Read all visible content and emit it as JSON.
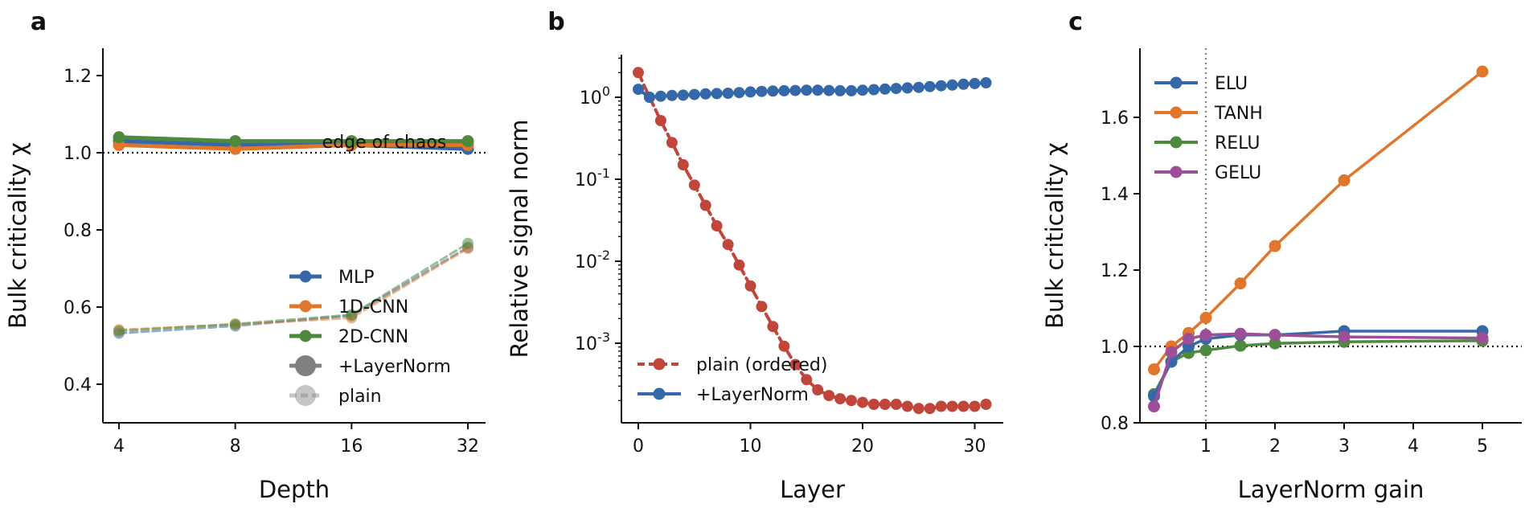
{
  "colors": {
    "MLP": "#3468a8",
    "1D-CNN": "#e0762b",
    "2D-CNN": "#4d8a3d",
    "plain_b": "#c0463c",
    "layernorm_b": "#3468a8",
    "ELU": "#3468a8",
    "TANH": "#e0762b",
    "RELU": "#4d8a3d",
    "GELU": "#9c4f96",
    "legend_gray": "#808080"
  },
  "chart_data": [
    {
      "panel": "a",
      "type": "line",
      "title": "",
      "xlabel": "Depth",
      "ylabel": "Bulk criticality χ",
      "x_scale": "log2",
      "x": [
        4,
        8,
        16,
        32
      ],
      "x_ticks": [
        "4",
        "8",
        "16",
        "32"
      ],
      "ylim": [
        0.3,
        1.25
      ],
      "y_ticks": [
        "0.4",
        "0.6",
        "0.8",
        "1.0",
        "1.2"
      ],
      "reference_line": 1.0,
      "annotation": "edge of chaos",
      "legend_position": "lower-right",
      "legend_entries": [
        "MLP",
        "1D-CNN",
        "2D-CNN",
        "+LayerNorm",
        "plain"
      ],
      "series": [
        {
          "name": "MLP",
          "variant": "+LayerNorm",
          "values": [
            1.03,
            1.02,
            1.02,
            1.01
          ]
        },
        {
          "name": "1D-CNN",
          "variant": "+LayerNorm",
          "values": [
            1.02,
            1.01,
            1.02,
            1.02
          ]
        },
        {
          "name": "2D-CNN",
          "variant": "+LayerNorm",
          "values": [
            1.04,
            1.03,
            1.03,
            1.03
          ]
        },
        {
          "name": "MLP",
          "variant": "plain",
          "values": [
            0.532,
            0.551,
            0.578,
            0.755
          ]
        },
        {
          "name": "1D-CNN",
          "variant": "plain",
          "values": [
            0.541,
            0.555,
            0.572,
            0.752
          ]
        },
        {
          "name": "2D-CNN",
          "variant": "plain",
          "values": [
            0.538,
            0.556,
            0.58,
            0.765
          ]
        }
      ]
    },
    {
      "panel": "b",
      "type": "line",
      "title": "",
      "xlabel": "Layer",
      "ylabel": "Relative signal norm",
      "y_scale": "log",
      "xlim": [
        -1.5,
        32.5
      ],
      "x_ticks": [
        "0",
        "10",
        "20",
        "30"
      ],
      "y_ticks": [
        "10^0",
        "10^-1",
        "10^-2",
        "10^-3"
      ],
      "legend_position": "lower-left",
      "legend_entries": [
        "plain (ordered)",
        "+LayerNorm"
      ],
      "series": [
        {
          "name": "plain (ordered)",
          "x": [
            0,
            1,
            2,
            3,
            4,
            5,
            6,
            7,
            8,
            9,
            10,
            11,
            12,
            13,
            14,
            15,
            16,
            17,
            18,
            19,
            20,
            21,
            22,
            23,
            24,
            25,
            26,
            27,
            28,
            29,
            30,
            31
          ],
          "values": [
            2.0,
            1.0,
            0.52,
            0.28,
            0.15,
            0.085,
            0.048,
            0.027,
            0.016,
            0.009,
            0.005,
            0.0028,
            0.0016,
            0.00092,
            0.00055,
            0.00036,
            0.00027,
            0.00023,
            0.00021,
            0.0002,
            0.00019,
            0.00018,
            0.00018,
            0.00018,
            0.00017,
            0.00016,
            0.00016,
            0.00017,
            0.00017,
            0.00017,
            0.00017,
            0.00018
          ]
        },
        {
          "name": "+LayerNorm",
          "x": [
            0,
            1,
            2,
            3,
            4,
            5,
            6,
            7,
            8,
            9,
            10,
            11,
            12,
            13,
            14,
            15,
            16,
            17,
            18,
            19,
            20,
            21,
            22,
            23,
            24,
            25,
            26,
            27,
            28,
            29,
            30,
            31
          ],
          "values": [
            1.25,
            1.0,
            1.03,
            1.05,
            1.06,
            1.08,
            1.1,
            1.11,
            1.12,
            1.14,
            1.16,
            1.18,
            1.19,
            1.2,
            1.21,
            1.22,
            1.22,
            1.21,
            1.2,
            1.2,
            1.22,
            1.24,
            1.26,
            1.28,
            1.3,
            1.32,
            1.35,
            1.38,
            1.41,
            1.44,
            1.47,
            1.5
          ]
        }
      ]
    },
    {
      "panel": "c",
      "type": "line",
      "title": "",
      "xlabel": "LayerNorm gain",
      "ylabel": "Bulk criticality χ",
      "xlim": [
        -0.05,
        5.2
      ],
      "ylim": [
        0.8,
        1.76
      ],
      "x_ticks": [
        "1",
        "2",
        "3",
        "4",
        "5"
      ],
      "y_ticks": [
        "0.8",
        "1.0",
        "1.2",
        "1.4",
        "1.6"
      ],
      "reference_line": 1.0,
      "vertical_reference": 1,
      "legend_position": "upper-left",
      "legend_entries": [
        "ELU",
        "TANH",
        "RELU",
        "GELU"
      ],
      "series": [
        {
          "name": "ELU",
          "x": [
            0.25,
            0.5,
            0.75,
            1.0,
            1.5,
            2.0,
            3.0,
            5.0
          ],
          "values": [
            0.87,
            0.96,
            1.0,
            1.02,
            1.03,
            1.03,
            1.04,
            1.04
          ]
        },
        {
          "name": "TANH",
          "x": [
            0.25,
            0.5,
            0.75,
            1.0,
            1.5,
            2.0,
            3.0,
            5.0
          ],
          "values": [
            0.94,
            1.0,
            1.035,
            1.075,
            1.165,
            1.263,
            1.435,
            1.72
          ]
        },
        {
          "name": "RELU",
          "x": [
            0.25,
            0.5,
            0.75,
            1.0,
            1.5,
            2.0,
            3.0,
            5.0
          ],
          "values": [
            0.875,
            0.96,
            0.983,
            0.99,
            1.002,
            1.008,
            1.012,
            1.015
          ]
        },
        {
          "name": "GELU",
          "x": [
            0.25,
            0.5,
            0.75,
            1.0,
            1.5,
            2.0,
            3.0,
            5.0
          ],
          "values": [
            0.843,
            0.985,
            1.02,
            1.03,
            1.033,
            1.03,
            1.025,
            1.022
          ]
        }
      ]
    }
  ]
}
